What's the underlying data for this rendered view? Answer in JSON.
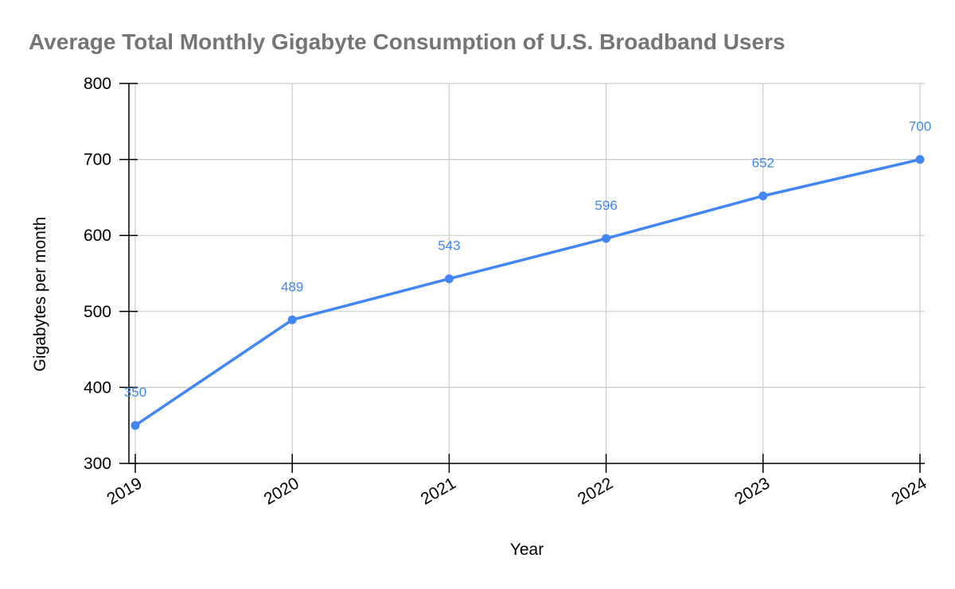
{
  "chart_data": {
    "type": "line",
    "title": "Average Total Monthly Gigabyte Consumption of U.S. Broadband Users",
    "xlabel": "Year",
    "ylabel": "Gigabytes per month",
    "categories": [
      "2019",
      "2020",
      "2021",
      "2022",
      "2023",
      "2024"
    ],
    "series": [
      {
        "values": [
          350,
          489,
          543,
          596,
          652,
          700
        ],
        "color": "#4285f4"
      }
    ],
    "ylim": [
      300,
      800
    ],
    "yticks": [
      "300",
      "400",
      "500",
      "600",
      "700",
      "800"
    ],
    "grid": true,
    "data_labels": true,
    "legend": "none"
  }
}
